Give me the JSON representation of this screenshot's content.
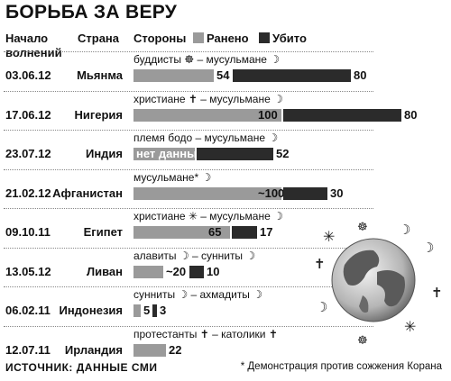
{
  "title": "БОРЬБА ЗА ВЕРУ",
  "headers": {
    "date": "Начало волнений",
    "country": "Страна",
    "sides": "Стороны"
  },
  "legend": {
    "wounded": "Ранено",
    "killed": "Убито"
  },
  "chart_data": {
    "type": "bar",
    "orientation": "horizontal",
    "stacked": true,
    "title": "БОРЬБА ЗА ВЕРУ",
    "categories": [
      "Мьянма",
      "Нигерия",
      "Индия",
      "Афганистан",
      "Египет",
      "Ливан",
      "Индонезия",
      "Ирландия"
    ],
    "dates": [
      "03.06.12",
      "17.06.12",
      "23.07.12",
      "21.02.12",
      "09.10.11",
      "13.05.12",
      "06.02.11",
      "12.07.11"
    ],
    "sides": [
      "буддисты ☸ – мусульмане ☽",
      "христиане ✝ – мусульмане ☽",
      "племя бодо – мусульмане ☽",
      "мусульмане* ☽",
      "христиане ✳ – мусульмане ☽",
      "алавиты ☽ – сунниты ☽",
      "сунниты ☽ – ахмадиты ☽",
      "протестанты ✝ – католики ✝"
    ],
    "series": [
      {
        "name": "Ранено",
        "values": [
          54,
          100,
          null,
          100,
          65,
          20,
          5,
          22
        ],
        "labels": [
          "54",
          "100",
          "нет данных",
          "~100",
          "65",
          "~20",
          "5",
          "22"
        ]
      },
      {
        "name": "Убито",
        "values": [
          80,
          80,
          52,
          30,
          17,
          10,
          3,
          null
        ],
        "labels": [
          "80",
          "80",
          "52",
          "30",
          "17",
          "10",
          "3",
          ""
        ]
      }
    ]
  },
  "source": "ИСТОЧНИК: ДАННЫЕ СМИ",
  "footnote": "* Демонстрация против сожжения Корана",
  "colors": {
    "wounded": "#9a9a9a",
    "killed": "#2b2b2b"
  }
}
